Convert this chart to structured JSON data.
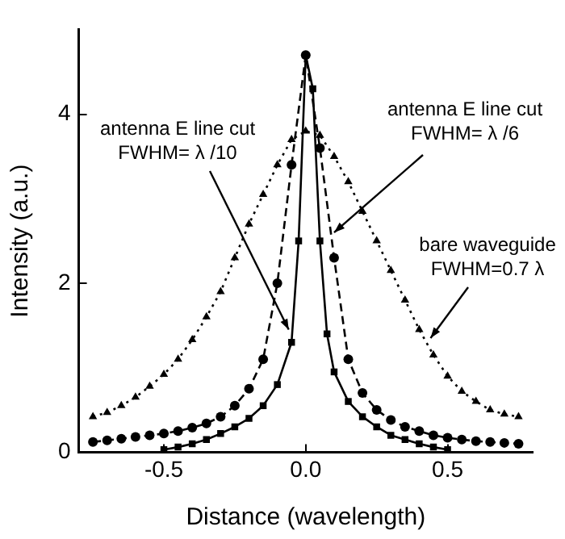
{
  "chart_data": {
    "type": "line",
    "xlabel": "Distance (wavelength)",
    "ylabel": "Intensity (a.u.)",
    "xlim": [
      -0.8,
      0.8
    ],
    "xticks": [
      -0.5,
      {
        "value": 0,
        "label": "0.0"
      },
      0.5
    ],
    "ylim": [
      0,
      5
    ],
    "yticks": [
      0,
      2,
      4
    ],
    "grid": false,
    "legend": false,
    "series": [
      {
        "color": "#000000",
        "marker": "triangle",
        "line_style": "dotted",
        "x": [
          -0.75,
          -0.7,
          -0.65,
          -0.6,
          -0.55,
          -0.5,
          -0.45,
          -0.4,
          -0.35,
          -0.3,
          -0.25,
          -0.2,
          -0.15,
          -0.1,
          -0.05,
          0,
          0.05,
          0.1,
          0.15,
          0.2,
          0.25,
          0.3,
          0.35,
          0.4,
          0.45,
          0.5,
          0.55,
          0.6,
          0.65,
          0.7,
          0.75
        ],
        "values": [
          0.42,
          0.47,
          0.55,
          0.65,
          0.78,
          0.92,
          1.1,
          1.33,
          1.6,
          1.9,
          2.3,
          2.7,
          3.05,
          3.4,
          3.7,
          3.8,
          3.75,
          3.5,
          3.2,
          2.85,
          2.5,
          2.15,
          1.8,
          1.45,
          1.15,
          0.9,
          0.72,
          0.6,
          0.5,
          0.45,
          0.42
        ]
      },
      {
        "color": "#000000",
        "marker": "circle",
        "line_style": "dashed",
        "x": [
          -0.75,
          -0.7,
          -0.65,
          -0.6,
          -0.55,
          -0.5,
          -0.45,
          -0.4,
          -0.35,
          -0.3,
          -0.25,
          -0.2,
          -0.15,
          -0.1,
          -0.05,
          0,
          0.05,
          0.1,
          0.15,
          0.2,
          0.25,
          0.3,
          0.35,
          0.4,
          0.45,
          0.5,
          0.55,
          0.6,
          0.65,
          0.7,
          0.75
        ],
        "values": [
          0.12,
          0.14,
          0.16,
          0.18,
          0.2,
          0.22,
          0.25,
          0.29,
          0.34,
          0.42,
          0.55,
          0.75,
          1.1,
          2.0,
          3.4,
          4.7,
          3.6,
          2.3,
          1.1,
          0.7,
          0.5,
          0.38,
          0.3,
          0.25,
          0.2,
          0.17,
          0.15,
          0.13,
          0.12,
          0.11,
          0.1
        ]
      },
      {
        "color": "#000000",
        "marker": "square",
        "line_style": "solid",
        "x": [
          -0.5,
          -0.45,
          -0.4,
          -0.35,
          -0.3,
          -0.25,
          -0.2,
          -0.15,
          -0.1,
          -0.05,
          -0.025,
          0,
          0.025,
          0.05,
          0.075,
          0.1,
          0.15,
          0.2,
          0.25,
          0.3,
          0.35,
          0.4,
          0.45,
          0.5
        ],
        "values": [
          0.03,
          0.06,
          0.1,
          0.15,
          0.22,
          0.3,
          0.4,
          0.55,
          0.8,
          1.3,
          2.5,
          4.7,
          4.3,
          2.5,
          1.4,
          0.95,
          0.6,
          0.42,
          0.3,
          0.2,
          0.15,
          0.1,
          0.06,
          0.03
        ]
      }
    ],
    "annotations": [
      {
        "text": "antenna E line cut\nFWHM= λ /10",
        "x": -0.06,
        "y": 1.45
      },
      {
        "text": "antenna E line cut\nFWHM= λ /6",
        "x": 0.1,
        "y": 2.6
      },
      {
        "text": "bare waveguide\nFWHM=0.7 λ",
        "x": 0.44,
        "y": 1.35
      }
    ]
  }
}
